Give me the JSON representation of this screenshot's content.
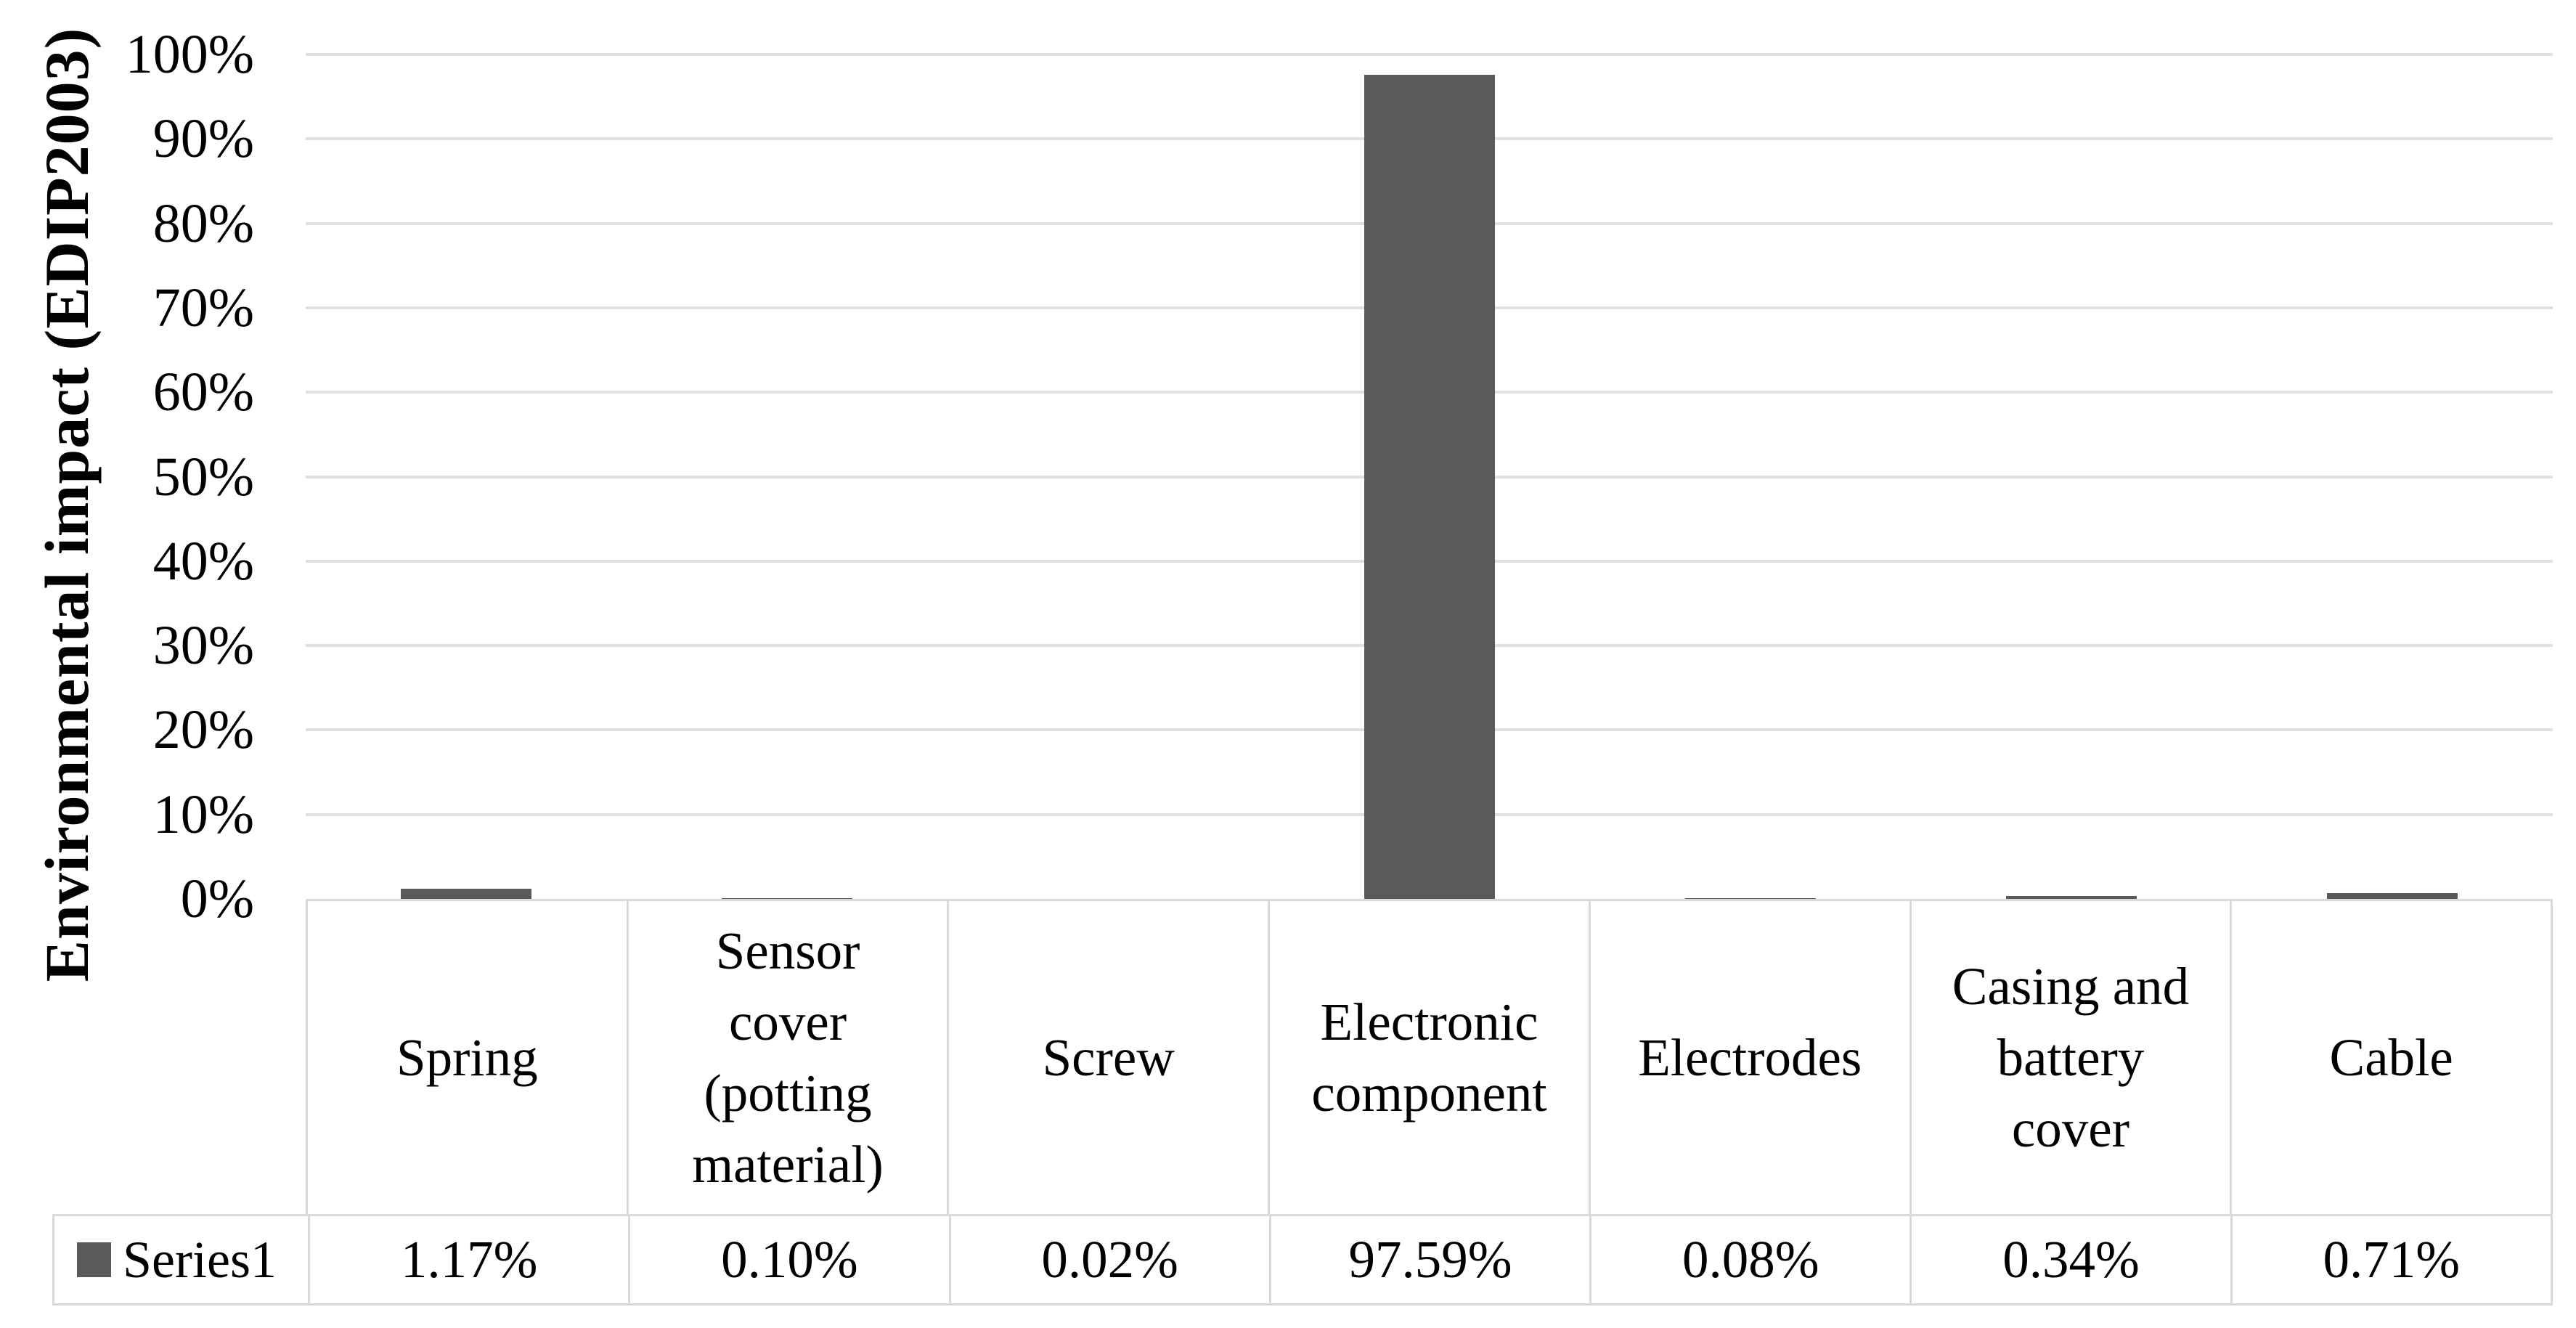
{
  "chart_data": {
    "type": "bar",
    "title": "",
    "xlabel": "",
    "ylabel": "Environmental impact (EDIP2003)",
    "categories": [
      "Spring",
      "Sensor cover (potting material)",
      "Screw",
      "Electronic component",
      "Electrodes",
      "Casing and battery cover",
      "Cable"
    ],
    "series": [
      {
        "name": "Series1",
        "values": [
          1.17,
          0.1,
          0.02,
          97.59,
          0.08,
          0.34,
          0.71
        ]
      }
    ],
    "value_labels": [
      "1.17%",
      "0.10%",
      "0.02%",
      "97.59%",
      "0.08%",
      "0.34%",
      "0.71%"
    ],
    "y_ticks": [
      "100%",
      "90%",
      "80%",
      "70%",
      "60%",
      "50%",
      "40%",
      "30%",
      "20%",
      "10%",
      "0%"
    ],
    "ylim": [
      0,
      100
    ],
    "grid": true,
    "legend_position": "data-table-left",
    "data_table_shown": true,
    "colors": {
      "bar": "#5A5A5A",
      "gridline": "#E0E0E0",
      "table_border": "#D9D9D9",
      "text": "#000000",
      "background": "#FFFFFF"
    }
  }
}
